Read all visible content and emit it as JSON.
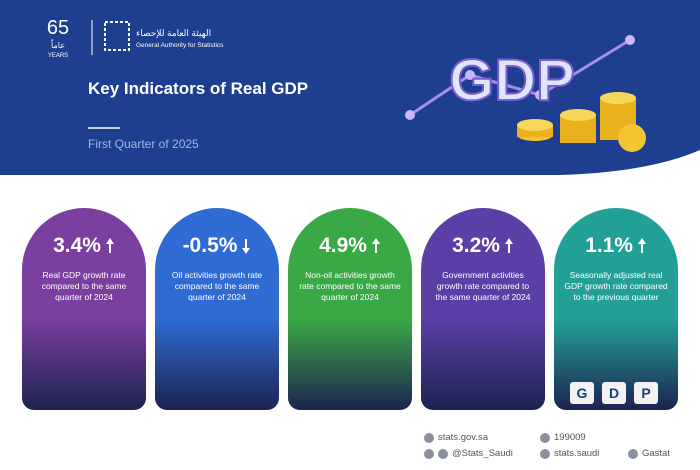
{
  "header": {
    "logo_number": "65",
    "logo_years": "YEARS",
    "logo_arabic": "عاماً",
    "org_arabic": "الهيئة العامة للإحصاء",
    "org_english": "General Authority for Statistics",
    "title": "Key Indicators of Real GDP",
    "subtitle": "First Quarter of 2025",
    "graphic_text": "GDP"
  },
  "cards": [
    {
      "value": "3.4%",
      "direction": "up",
      "color": "#7a3f9f",
      "description": "Real GDP growth rate compared to the same quarter of 2024"
    },
    {
      "value": "-0.5%",
      "direction": "down",
      "color": "#2f6bd3",
      "description": "Oil activities growth rate compared to the same quarter of 2024"
    },
    {
      "value": "4.9%",
      "direction": "up",
      "color": "#3aa845",
      "description": "Non-oil activities growth rate compared to the same quarter of 2024"
    },
    {
      "value": "3.2%",
      "direction": "up",
      "color": "#5b3ea6",
      "description": "Government activities growth rate compared to the same quarter of 2024"
    },
    {
      "value": "1.1%",
      "direction": "up",
      "color": "#23a096",
      "description": "Seasonally adjusted real GDP growth rate compared to the previous quarter",
      "blocks": [
        "G",
        "D",
        "P"
      ]
    }
  ],
  "footer": {
    "website": "stats.gov.sa",
    "phone": "199009",
    "twitter": "@Stats_Saudi",
    "instagram": "stats.saudi",
    "other": "Gastat"
  }
}
